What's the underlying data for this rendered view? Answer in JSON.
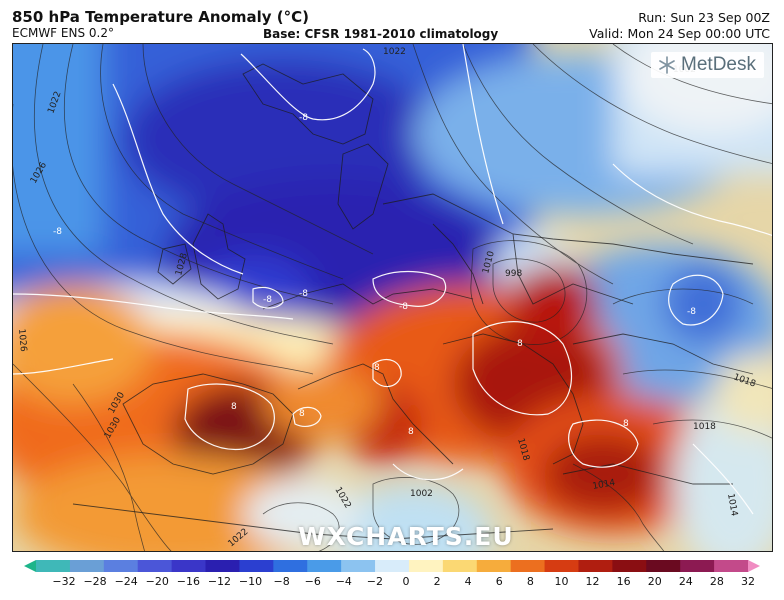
{
  "header": {
    "title": "850 hPa Temperature Anomaly (°C)",
    "model": "ECMWF ENS 0.2°",
    "base": "Base: CFSR 1981-2010 climatology",
    "run": "Run: Sun 23 Sep 00Z",
    "valid": "Valid: Mon 24 Sep 00:00 UTC"
  },
  "map": {
    "logo_text": "MetDesk",
    "watermark": "WXCHARTS.EU",
    "isobar_labels": [
      "1022",
      "1026",
      "1028",
      "1026",
      "1030",
      "1030",
      "1022",
      "1002",
      "998",
      "1010",
      "1018",
      "1018",
      "1014",
      "1018",
      "1014",
      "1022",
      "1022",
      "1002"
    ],
    "anomaly_labels": [
      "-8",
      "-8",
      "-8",
      "-8",
      "-8",
      "-8",
      "8",
      "8",
      "8",
      "8",
      "8",
      "8"
    ]
  },
  "colorbar": {
    "ticks": [
      "−32",
      "−28",
      "−24",
      "−20",
      "−16",
      "−12",
      "−10",
      "−8",
      "−6",
      "−4",
      "−2",
      "0",
      "2",
      "4",
      "6",
      "8",
      "10",
      "12",
      "16",
      "20",
      "24",
      "28",
      "32"
    ],
    "colors": [
      "#1db58a",
      "#3fb8b8",
      "#6a9fd6",
      "#5b7fe0",
      "#4b56d8",
      "#3a36c8",
      "#2a1fb0",
      "#2b3fd0",
      "#2f6fe0",
      "#4a9be8",
      "#8cc3f0",
      "#d8ecfa",
      "#fff3c0",
      "#fbd873",
      "#f6ac3c",
      "#ec6f1f",
      "#d63c12",
      "#b01e10",
      "#8a0e12",
      "#6a0a20",
      "#8c1a52",
      "#c34a8a",
      "#f08cc2"
    ]
  }
}
